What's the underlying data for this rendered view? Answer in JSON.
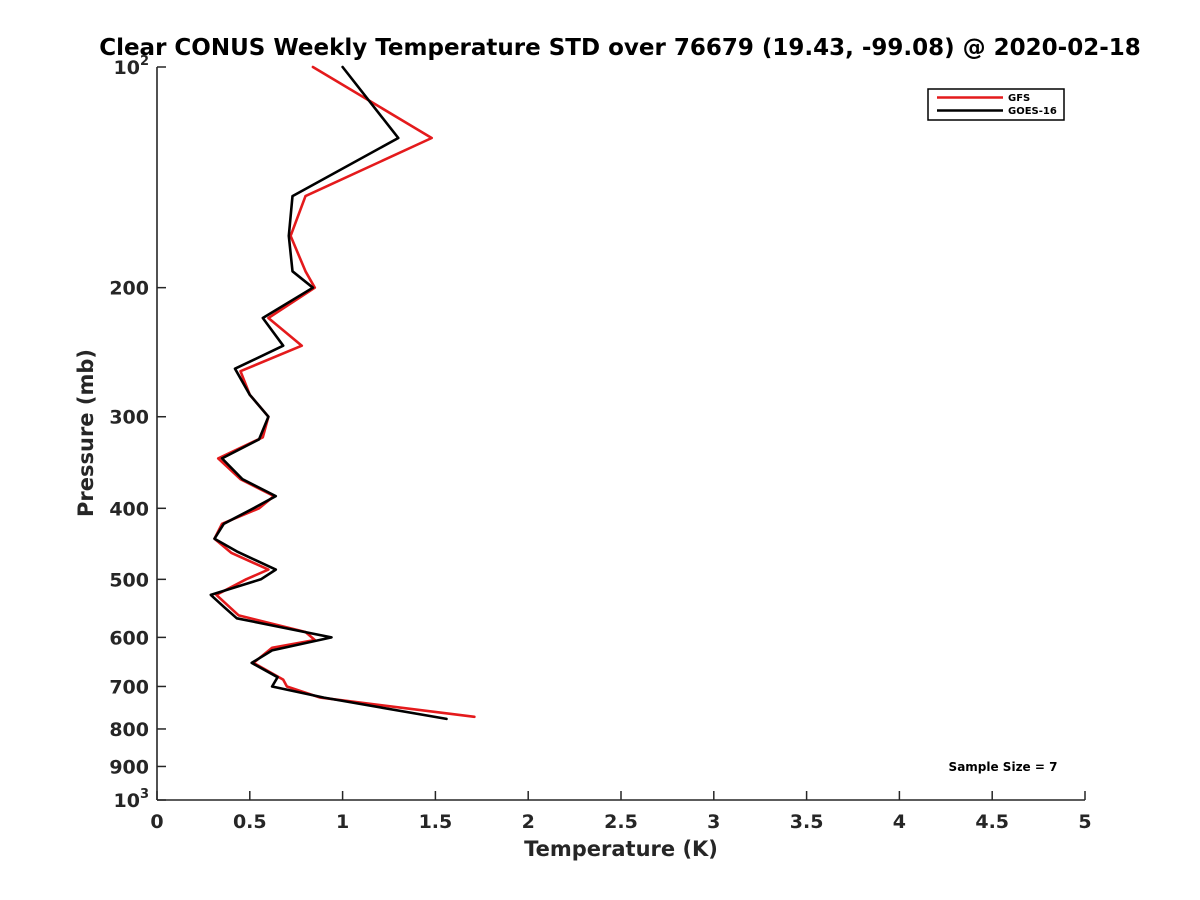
{
  "chart_data": {
    "type": "line",
    "title": "Clear CONUS Weekly Temperature STD over 76679 (19.43, -99.08) @ 2020-02-18",
    "xlabel": "Temperature (K)",
    "ylabel": "Pressure (mb)",
    "xlim": [
      0,
      5
    ],
    "ylim": [
      100,
      1000
    ],
    "y_scale": "log",
    "y_reversed": true,
    "grid": false,
    "legend_position": "top-right",
    "x_ticks": [
      {
        "value": 0,
        "label": "0"
      },
      {
        "value": 0.5,
        "label": "0.5"
      },
      {
        "value": 1,
        "label": "1"
      },
      {
        "value": 1.5,
        "label": "1.5"
      },
      {
        "value": 2,
        "label": "2"
      },
      {
        "value": 2.5,
        "label": "2.5"
      },
      {
        "value": 3,
        "label": "3"
      },
      {
        "value": 3.5,
        "label": "3.5"
      },
      {
        "value": 4,
        "label": "4"
      },
      {
        "value": 4.5,
        "label": "4.5"
      },
      {
        "value": 5,
        "label": "5"
      }
    ],
    "y_ticks": [
      {
        "value": 100,
        "label": "10",
        "sup": "2"
      },
      {
        "value": 200,
        "label": "200",
        "sup": ""
      },
      {
        "value": 300,
        "label": "300",
        "sup": ""
      },
      {
        "value": 400,
        "label": "400",
        "sup": ""
      },
      {
        "value": 500,
        "label": "500",
        "sup": ""
      },
      {
        "value": 600,
        "label": "600",
        "sup": ""
      },
      {
        "value": 700,
        "label": "700",
        "sup": ""
      },
      {
        "value": 800,
        "label": "800",
        "sup": ""
      },
      {
        "value": 900,
        "label": "900",
        "sup": ""
      },
      {
        "value": 1000,
        "label": "10",
        "sup": "3"
      }
    ],
    "series": [
      {
        "name": "GFS",
        "color": "#e41a1c",
        "points": [
          {
            "x": 0.84,
            "p": 100
          },
          {
            "x": 1.48,
            "p": 125
          },
          {
            "x": 0.8,
            "p": 150
          },
          {
            "x": 0.72,
            "p": 170
          },
          {
            "x": 0.8,
            "p": 190
          },
          {
            "x": 0.85,
            "p": 200
          },
          {
            "x": 0.6,
            "p": 220
          },
          {
            "x": 0.78,
            "p": 240
          },
          {
            "x": 0.45,
            "p": 260
          },
          {
            "x": 0.5,
            "p": 280
          },
          {
            "x": 0.6,
            "p": 300
          },
          {
            "x": 0.57,
            "p": 320
          },
          {
            "x": 0.33,
            "p": 342
          },
          {
            "x": 0.45,
            "p": 365
          },
          {
            "x": 0.63,
            "p": 385
          },
          {
            "x": 0.55,
            "p": 400
          },
          {
            "x": 0.35,
            "p": 420
          },
          {
            "x": 0.31,
            "p": 440
          },
          {
            "x": 0.4,
            "p": 460
          },
          {
            "x": 0.6,
            "p": 485
          },
          {
            "x": 0.48,
            "p": 500
          },
          {
            "x": 0.32,
            "p": 525
          },
          {
            "x": 0.44,
            "p": 560
          },
          {
            "x": 0.8,
            "p": 590
          },
          {
            "x": 0.85,
            "p": 605
          },
          {
            "x": 0.62,
            "p": 620
          },
          {
            "x": 0.52,
            "p": 650
          },
          {
            "x": 0.68,
            "p": 685
          },
          {
            "x": 0.7,
            "p": 700
          },
          {
            "x": 0.88,
            "p": 725
          },
          {
            "x": 1.71,
            "p": 770
          }
        ]
      },
      {
        "name": "GOES-16",
        "color": "#000000",
        "points": [
          {
            "x": 1.0,
            "p": 100
          },
          {
            "x": 1.3,
            "p": 125
          },
          {
            "x": 0.73,
            "p": 150
          },
          {
            "x": 0.71,
            "p": 170
          },
          {
            "x": 0.73,
            "p": 190
          },
          {
            "x": 0.84,
            "p": 200
          },
          {
            "x": 0.57,
            "p": 220
          },
          {
            "x": 0.68,
            "p": 240
          },
          {
            "x": 0.42,
            "p": 258
          },
          {
            "x": 0.5,
            "p": 280
          },
          {
            "x": 0.6,
            "p": 300
          },
          {
            "x": 0.55,
            "p": 322
          },
          {
            "x": 0.35,
            "p": 342
          },
          {
            "x": 0.46,
            "p": 365
          },
          {
            "x": 0.64,
            "p": 385
          },
          {
            "x": 0.52,
            "p": 400
          },
          {
            "x": 0.36,
            "p": 420
          },
          {
            "x": 0.31,
            "p": 440
          },
          {
            "x": 0.43,
            "p": 458
          },
          {
            "x": 0.64,
            "p": 485
          },
          {
            "x": 0.56,
            "p": 500
          },
          {
            "x": 0.29,
            "p": 525
          },
          {
            "x": 0.36,
            "p": 545
          },
          {
            "x": 0.43,
            "p": 565
          },
          {
            "x": 0.94,
            "p": 600
          },
          {
            "x": 0.62,
            "p": 625
          },
          {
            "x": 0.51,
            "p": 650
          },
          {
            "x": 0.65,
            "p": 680
          },
          {
            "x": 0.62,
            "p": 700
          },
          {
            "x": 0.9,
            "p": 725
          },
          {
            "x": 1.56,
            "p": 775
          }
        ]
      }
    ],
    "annotation": "Sample Size = 7"
  }
}
